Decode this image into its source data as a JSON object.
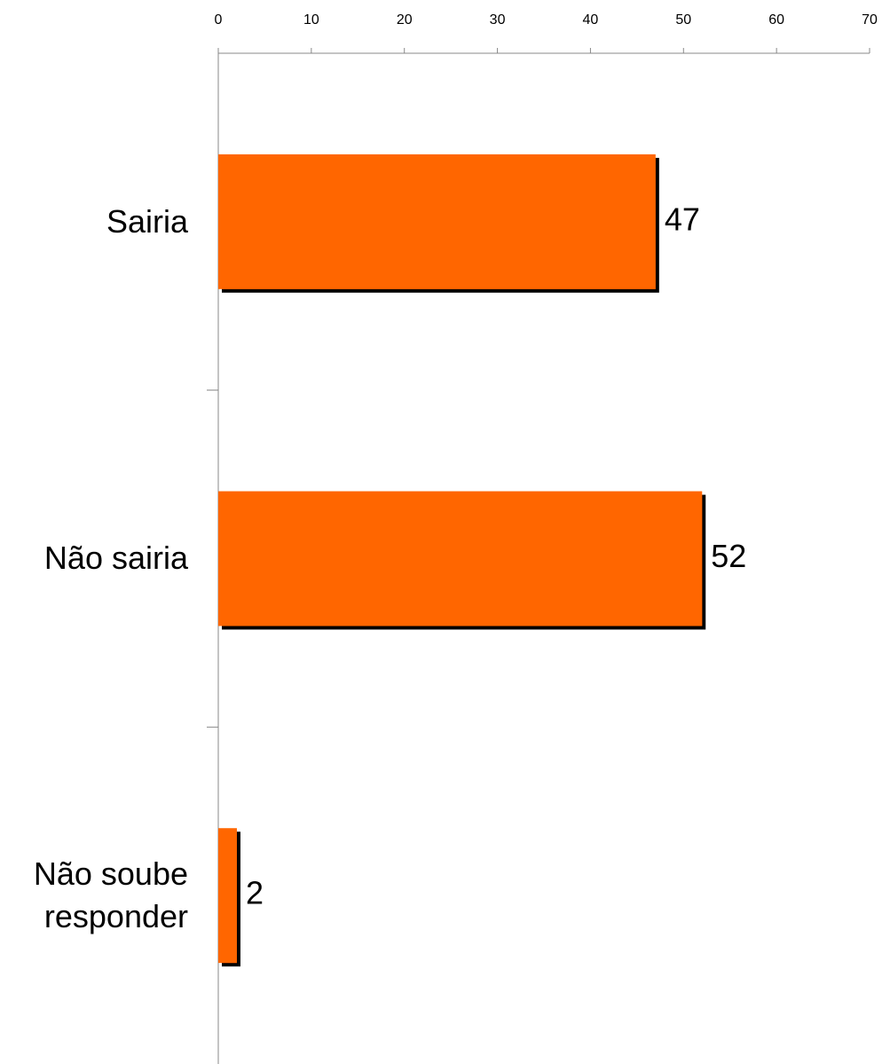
{
  "chart_data": {
    "type": "barh",
    "categories": [
      "Sairia",
      "Não sairia",
      "Não soube responder"
    ],
    "values": [
      47,
      52,
      2
    ],
    "color": "#ff6600",
    "xlim": [
      0,
      70
    ],
    "xticks": [
      0,
      10,
      20,
      30,
      40,
      50,
      60,
      70
    ]
  }
}
